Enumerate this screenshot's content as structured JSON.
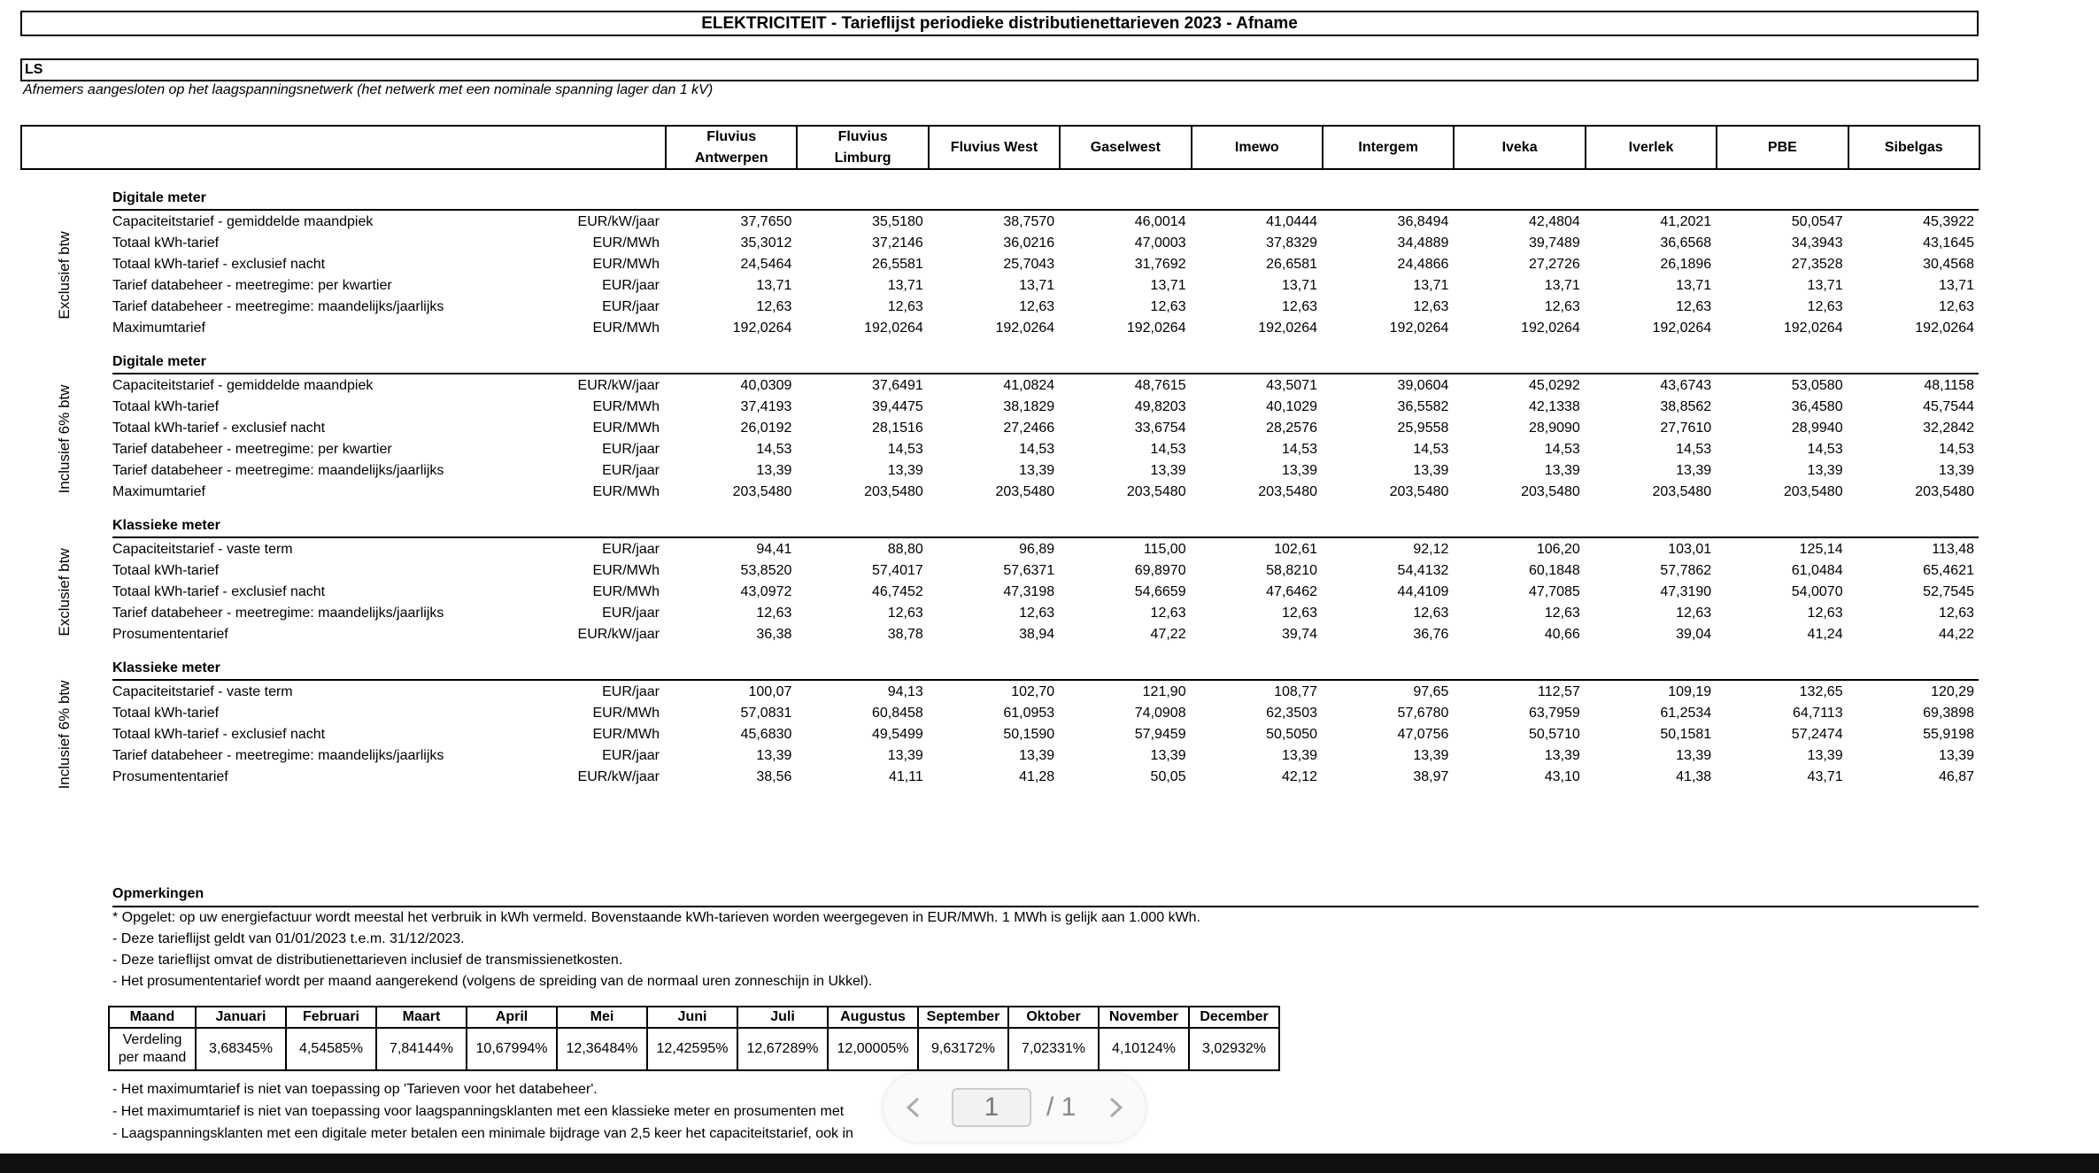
{
  "header": {
    "title": "ELEKTRICITEIT - Tarieflijst periodieke distributienettarieven 2023 - Afname",
    "segment": "LS",
    "description": "Afnemers aangesloten op het laagspanningsnetwerk (het netwerk met een nominale spanning lager dan 1 kV)"
  },
  "table": {
    "columns": [
      "Fluvius Antwerpen",
      "Fluvius Limburg",
      "Fluvius West",
      "Gaselwest",
      "Imewo",
      "Intergem",
      "Iveka",
      "Iverlek",
      "PBE",
      "Sibelgas"
    ],
    "sections": [
      {
        "side_label": "Exclusief btw",
        "heading": "Digitale meter",
        "rows": [
          {
            "label": "Capaciteitstarief - gemiddelde maandpiek",
            "unit": "EUR/kW/jaar",
            "values": [
              "37,7650",
              "35,5180",
              "38,7570",
              "46,0014",
              "41,0444",
              "36,8494",
              "42,4804",
              "41,2021",
              "50,0547",
              "45,3922"
            ]
          },
          {
            "label": "Totaal kWh-tarief",
            "unit": "EUR/MWh",
            "values": [
              "35,3012",
              "37,2146",
              "36,0216",
              "47,0003",
              "37,8329",
              "34,4889",
              "39,7489",
              "36,6568",
              "34,3943",
              "43,1645"
            ]
          },
          {
            "label": "Totaal kWh-tarief - exclusief nacht",
            "unit": "EUR/MWh",
            "values": [
              "24,5464",
              "26,5581",
              "25,7043",
              "31,7692",
              "26,6581",
              "24,4866",
              "27,2726",
              "26,1896",
              "27,3528",
              "30,4568"
            ]
          },
          {
            "label": "Tarief databeheer - meetregime: per kwartier",
            "unit": "EUR/jaar",
            "values": [
              "13,71",
              "13,71",
              "13,71",
              "13,71",
              "13,71",
              "13,71",
              "13,71",
              "13,71",
              "13,71",
              "13,71"
            ]
          },
          {
            "label": "Tarief databeheer - meetregime: maandelijks/jaarlijks",
            "unit": "EUR/jaar",
            "values": [
              "12,63",
              "12,63",
              "12,63",
              "12,63",
              "12,63",
              "12,63",
              "12,63",
              "12,63",
              "12,63",
              "12,63"
            ]
          },
          {
            "label": "Maximumtarief",
            "unit": "EUR/MWh",
            "values": [
              "192,0264",
              "192,0264",
              "192,0264",
              "192,0264",
              "192,0264",
              "192,0264",
              "192,0264",
              "192,0264",
              "192,0264",
              "192,0264"
            ]
          }
        ]
      },
      {
        "side_label": "Inclusief 6% btw",
        "heading": "Digitale meter",
        "rows": [
          {
            "label": "Capaciteitstarief - gemiddelde maandpiek",
            "unit": "EUR/kW/jaar",
            "values": [
              "40,0309",
              "37,6491",
              "41,0824",
              "48,7615",
              "43,5071",
              "39,0604",
              "45,0292",
              "43,6743",
              "53,0580",
              "48,1158"
            ]
          },
          {
            "label": "Totaal kWh-tarief",
            "unit": "EUR/MWh",
            "values": [
              "37,4193",
              "39,4475",
              "38,1829",
              "49,8203",
              "40,1029",
              "36,5582",
              "42,1338",
              "38,8562",
              "36,4580",
              "45,7544"
            ]
          },
          {
            "label": "Totaal kWh-tarief - exclusief nacht",
            "unit": "EUR/MWh",
            "values": [
              "26,0192",
              "28,1516",
              "27,2466",
              "33,6754",
              "28,2576",
              "25,9558",
              "28,9090",
              "27,7610",
              "28,9940",
              "32,2842"
            ]
          },
          {
            "label": "Tarief databeheer - meetregime: per kwartier",
            "unit": "EUR/jaar",
            "values": [
              "14,53",
              "14,53",
              "14,53",
              "14,53",
              "14,53",
              "14,53",
              "14,53",
              "14,53",
              "14,53",
              "14,53"
            ]
          },
          {
            "label": "Tarief databeheer - meetregime: maandelijks/jaarlijks",
            "unit": "EUR/jaar",
            "values": [
              "13,39",
              "13,39",
              "13,39",
              "13,39",
              "13,39",
              "13,39",
              "13,39",
              "13,39",
              "13,39",
              "13,39"
            ]
          },
          {
            "label": "Maximumtarief",
            "unit": "EUR/MWh",
            "values": [
              "203,5480",
              "203,5480",
              "203,5480",
              "203,5480",
              "203,5480",
              "203,5480",
              "203,5480",
              "203,5480",
              "203,5480",
              "203,5480"
            ]
          }
        ]
      },
      {
        "side_label": "Exclusief btw",
        "heading": "Klassieke meter",
        "rows": [
          {
            "label": "Capaciteitstarief - vaste term",
            "unit": "EUR/jaar",
            "values": [
              "94,41",
              "88,80",
              "96,89",
              "115,00",
              "102,61",
              "92,12",
              "106,20",
              "103,01",
              "125,14",
              "113,48"
            ]
          },
          {
            "label": "Totaal kWh-tarief",
            "unit": "EUR/MWh",
            "values": [
              "53,8520",
              "57,4017",
              "57,6371",
              "69,8970",
              "58,8210",
              "54,4132",
              "60,1848",
              "57,7862",
              "61,0484",
              "65,4621"
            ]
          },
          {
            "label": "Totaal kWh-tarief - exclusief nacht",
            "unit": "EUR/MWh",
            "values": [
              "43,0972",
              "46,7452",
              "47,3198",
              "54,6659",
              "47,6462",
              "44,4109",
              "47,7085",
              "47,3190",
              "54,0070",
              "52,7545"
            ]
          },
          {
            "label": "Tarief databeheer - meetregime: maandelijks/jaarlijks",
            "unit": "EUR/jaar",
            "values": [
              "12,63",
              "12,63",
              "12,63",
              "12,63",
              "12,63",
              "12,63",
              "12,63",
              "12,63",
              "12,63",
              "12,63"
            ]
          },
          {
            "label": "Prosumententarief",
            "unit": "EUR/kW/jaar",
            "values": [
              "36,38",
              "38,78",
              "38,94",
              "47,22",
              "39,74",
              "36,76",
              "40,66",
              "39,04",
              "41,24",
              "44,22"
            ]
          }
        ]
      },
      {
        "side_label": "Inclusief 6% btw",
        "heading": "Klassieke meter",
        "rows": [
          {
            "label": "Capaciteitstarief - vaste term",
            "unit": "EUR/jaar",
            "values": [
              "100,07",
              "94,13",
              "102,70",
              "121,90",
              "108,77",
              "97,65",
              "112,57",
              "109,19",
              "132,65",
              "120,29"
            ]
          },
          {
            "label": "Totaal kWh-tarief",
            "unit": "EUR/MWh",
            "values": [
              "57,0831",
              "60,8458",
              "61,0953",
              "74,0908",
              "62,3503",
              "57,6780",
              "63,7959",
              "61,2534",
              "64,7113",
              "69,3898"
            ]
          },
          {
            "label": "Totaal kWh-tarief - exclusief nacht",
            "unit": "EUR/MWh",
            "values": [
              "45,6830",
              "49,5499",
              "50,1590",
              "57,9459",
              "50,5050",
              "47,0756",
              "50,5710",
              "50,1581",
              "57,2474",
              "55,9198"
            ]
          },
          {
            "label": "Tarief databeheer - meetregime: maandelijks/jaarlijks",
            "unit": "EUR/jaar",
            "values": [
              "13,39",
              "13,39",
              "13,39",
              "13,39",
              "13,39",
              "13,39",
              "13,39",
              "13,39",
              "13,39",
              "13,39"
            ]
          },
          {
            "label": "Prosumententarief",
            "unit": "EUR/kW/jaar",
            "values": [
              "38,56",
              "41,11",
              "41,28",
              "50,05",
              "42,12",
              "38,97",
              "43,10",
              "41,38",
              "43,71",
              "46,87"
            ]
          }
        ]
      }
    ]
  },
  "remarks": {
    "heading": "Opmerkingen",
    "notes": [
      "* Opgelet: op uw energiefactuur wordt meestal het verbruik in kWh vermeld. Bovenstaande kWh-tarieven worden weergegeven in EUR/MWh. 1 MWh is gelijk aan 1.000 kWh.",
      "- Deze tarieflijst geldt van 01/01/2023 t.e.m. 31/12/2023.",
      "- Deze tarieflijst omvat de distributienettarieven inclusief de transmissienetkosten.",
      "- Het prosumententarief wordt per maand aangerekend (volgens de spreiding van de normaal uren zonneschijn in Ukkel)."
    ],
    "month_table": {
      "header": [
        "Maand",
        "Januari",
        "Februari",
        "Maart",
        "April",
        "Mei",
        "Juni",
        "Juli",
        "Augustus",
        "September",
        "Oktober",
        "November",
        "December"
      ],
      "row_label": "Verdeling per maand",
      "values": [
        "3,68345%",
        "4,54585%",
        "7,84144%",
        "10,67994%",
        "12,36484%",
        "12,42595%",
        "12,67289%",
        "12,00005%",
        "9,63172%",
        "7,02331%",
        "4,10124%",
        "3,02932%"
      ]
    },
    "notes_after": [
      "- Het maximumtarief is niet van toepassing op 'Tarieven voor het databeheer'.",
      "- Het maximumtarief is niet van toepassing voor laagspanningsklanten met een klassieke meter en prosumenten met",
      "- Laagspanningsklanten met een digitale meter betalen een minimale bijdrage van 2,5 keer het capaciteitstarief, ook in"
    ]
  },
  "pager": {
    "current": "1",
    "total": "/ 1"
  }
}
